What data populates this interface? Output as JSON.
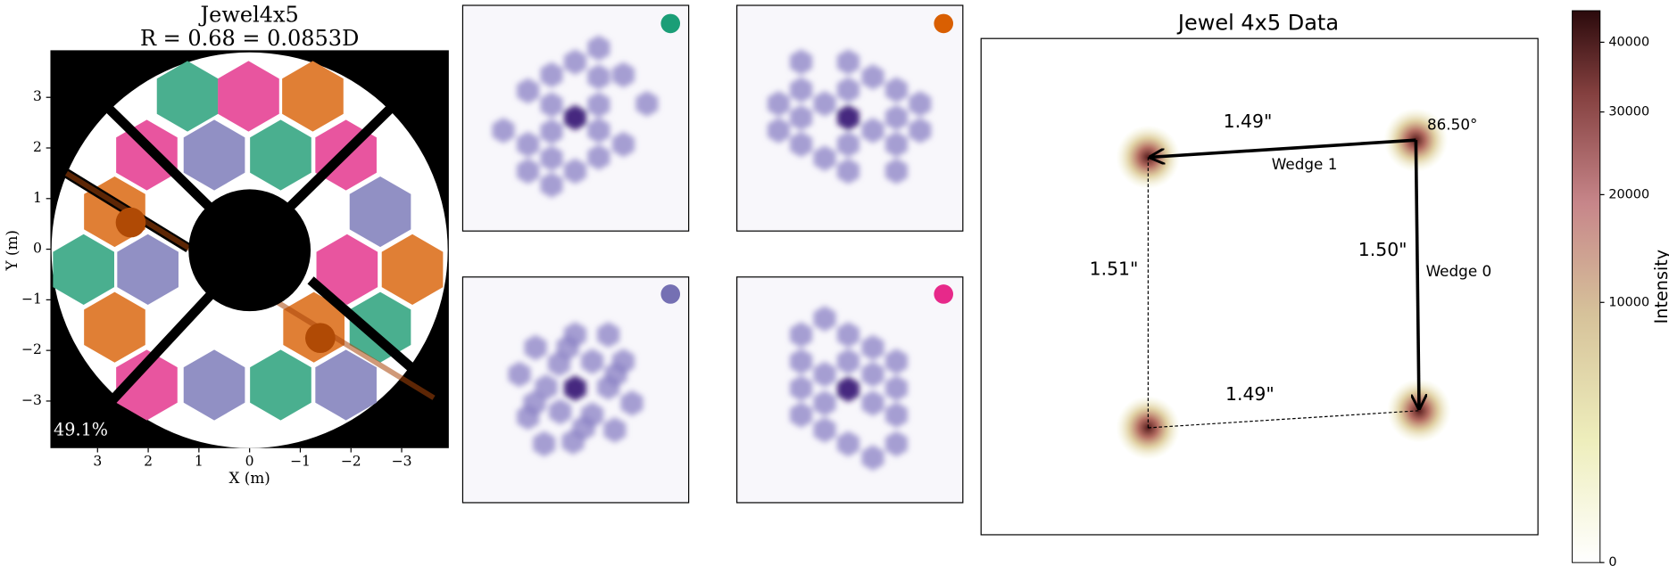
{
  "chart_data": [
    {
      "type": "image",
      "title": "Jewel4x5",
      "subtitle": "R = 0.68 = 0.0853D",
      "x_label": "X (m)",
      "y_label": "Y (m)",
      "xlim": [
        3.93,
        -3.93
      ],
      "ylim": [
        -3.93,
        3.93
      ],
      "xticks": [
        3,
        2,
        1,
        0,
        {
          "value": -1,
          "label": "−1"
        },
        {
          "value": -2,
          "label": "−2"
        },
        {
          "value": -3,
          "label": "−3"
        }
      ],
      "yticks": [
        {
          "value": -3,
          "label": "−3"
        },
        {
          "value": -2,
          "label": "−2"
        },
        {
          "value": -1,
          "label": "−1"
        },
        0,
        1,
        2,
        3
      ],
      "annotations": [
        "49.1%"
      ]
    },
    {
      "type": "image",
      "title": "Jewel 4x5 Data",
      "annotations": [
        "1.49\"",
        "Wedge 1",
        "86.50°",
        "1.51\"",
        "1.50\"",
        "Wedge 0",
        "1.49\""
      ],
      "colorbar": {
        "label": "Intensity",
        "scale": "sqrt",
        "lim": [
          0,
          45000
        ],
        "ticks": [
          0,
          10000,
          20000,
          30000,
          40000
        ]
      }
    }
  ]
}
